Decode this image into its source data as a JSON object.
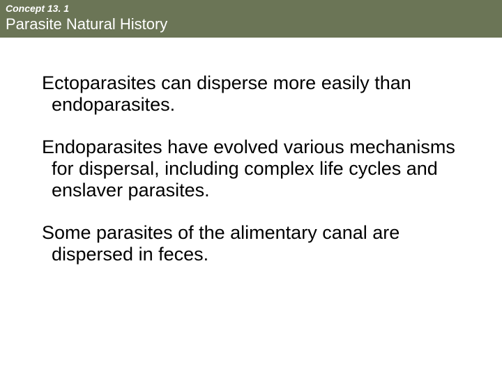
{
  "header": {
    "concept_label": "Concept 13. 1",
    "title": "Parasite Natural History",
    "background_color": "#6b7556",
    "text_color": "#ffffff",
    "concept_fontsize": 14,
    "title_fontsize": 22
  },
  "content": {
    "paragraphs": [
      "Ectoparasites can disperse more easily than endoparasites.",
      "Endoparasites have evolved various mechanisms for dispersal, including complex life cycles and enslaver parasites.",
      "Some parasites of the alimentary canal are dispersed in feces."
    ],
    "fontsize": 27,
    "text_color": "#000000",
    "background_color": "#ffffff"
  }
}
